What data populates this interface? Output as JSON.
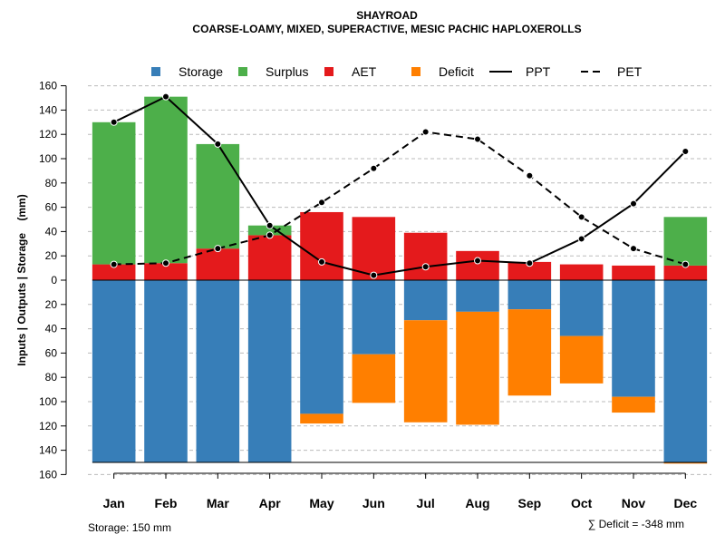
{
  "chart_data": {
    "type": "bar",
    "title": "SHAYROAD",
    "subtitle": "COARSE-LOAMY, MIXED, SUPERACTIVE, MESIC PACHIC HAPLOXEROLLS",
    "ylabel": "Inputs | Outputs | Storage    (mm)",
    "ylim": [
      -160,
      160
    ],
    "yticks": [
      160,
      140,
      120,
      100,
      80,
      60,
      40,
      20,
      0,
      20,
      40,
      60,
      80,
      100,
      120,
      140,
      160
    ],
    "categories": [
      "Jan",
      "Feb",
      "Mar",
      "Apr",
      "May",
      "Jun",
      "Jul",
      "Aug",
      "Sep",
      "Oct",
      "Nov",
      "Dec"
    ],
    "legend": [
      {
        "name": "Storage",
        "color": "#377EB8",
        "kind": "box"
      },
      {
        "name": "Surplus",
        "color": "#4DAF4A",
        "kind": "box"
      },
      {
        "name": "AET",
        "color": "#E41A1C",
        "kind": "box"
      },
      {
        "name": "Deficit",
        "color": "#FF7F00",
        "kind": "box"
      },
      {
        "name": "PPT",
        "color": "#000000",
        "kind": "solid"
      },
      {
        "name": "PET",
        "color": "#000000",
        "kind": "dashed"
      }
    ],
    "series": [
      {
        "name": "AET",
        "values": [
          13,
          14,
          26,
          37,
          56,
          52,
          39,
          24,
          15,
          13,
          12,
          12
        ]
      },
      {
        "name": "Surplus",
        "values": [
          117,
          137,
          86,
          8,
          0,
          0,
          0,
          0,
          0,
          0,
          0,
          40
        ]
      },
      {
        "name": "Storage",
        "values": [
          150,
          150,
          150,
          150,
          110,
          61,
          33,
          26,
          24,
          46,
          96,
          150
        ]
      },
      {
        "name": "Deficit",
        "values": [
          0,
          0,
          0,
          0,
          8,
          40,
          84,
          93,
          71,
          39,
          13,
          1
        ]
      },
      {
        "name": "PPT",
        "values": [
          130,
          151,
          112,
          45,
          15,
          4,
          11,
          16,
          14,
          34,
          63,
          106
        ]
      },
      {
        "name": "PET",
        "values": [
          13,
          14,
          26,
          37,
          64,
          92,
          122,
          116,
          86,
          52,
          26,
          13
        ]
      }
    ],
    "storage_note": "Storage: 150 mm",
    "deficit_note": "∑ Deficit = -348 mm"
  }
}
